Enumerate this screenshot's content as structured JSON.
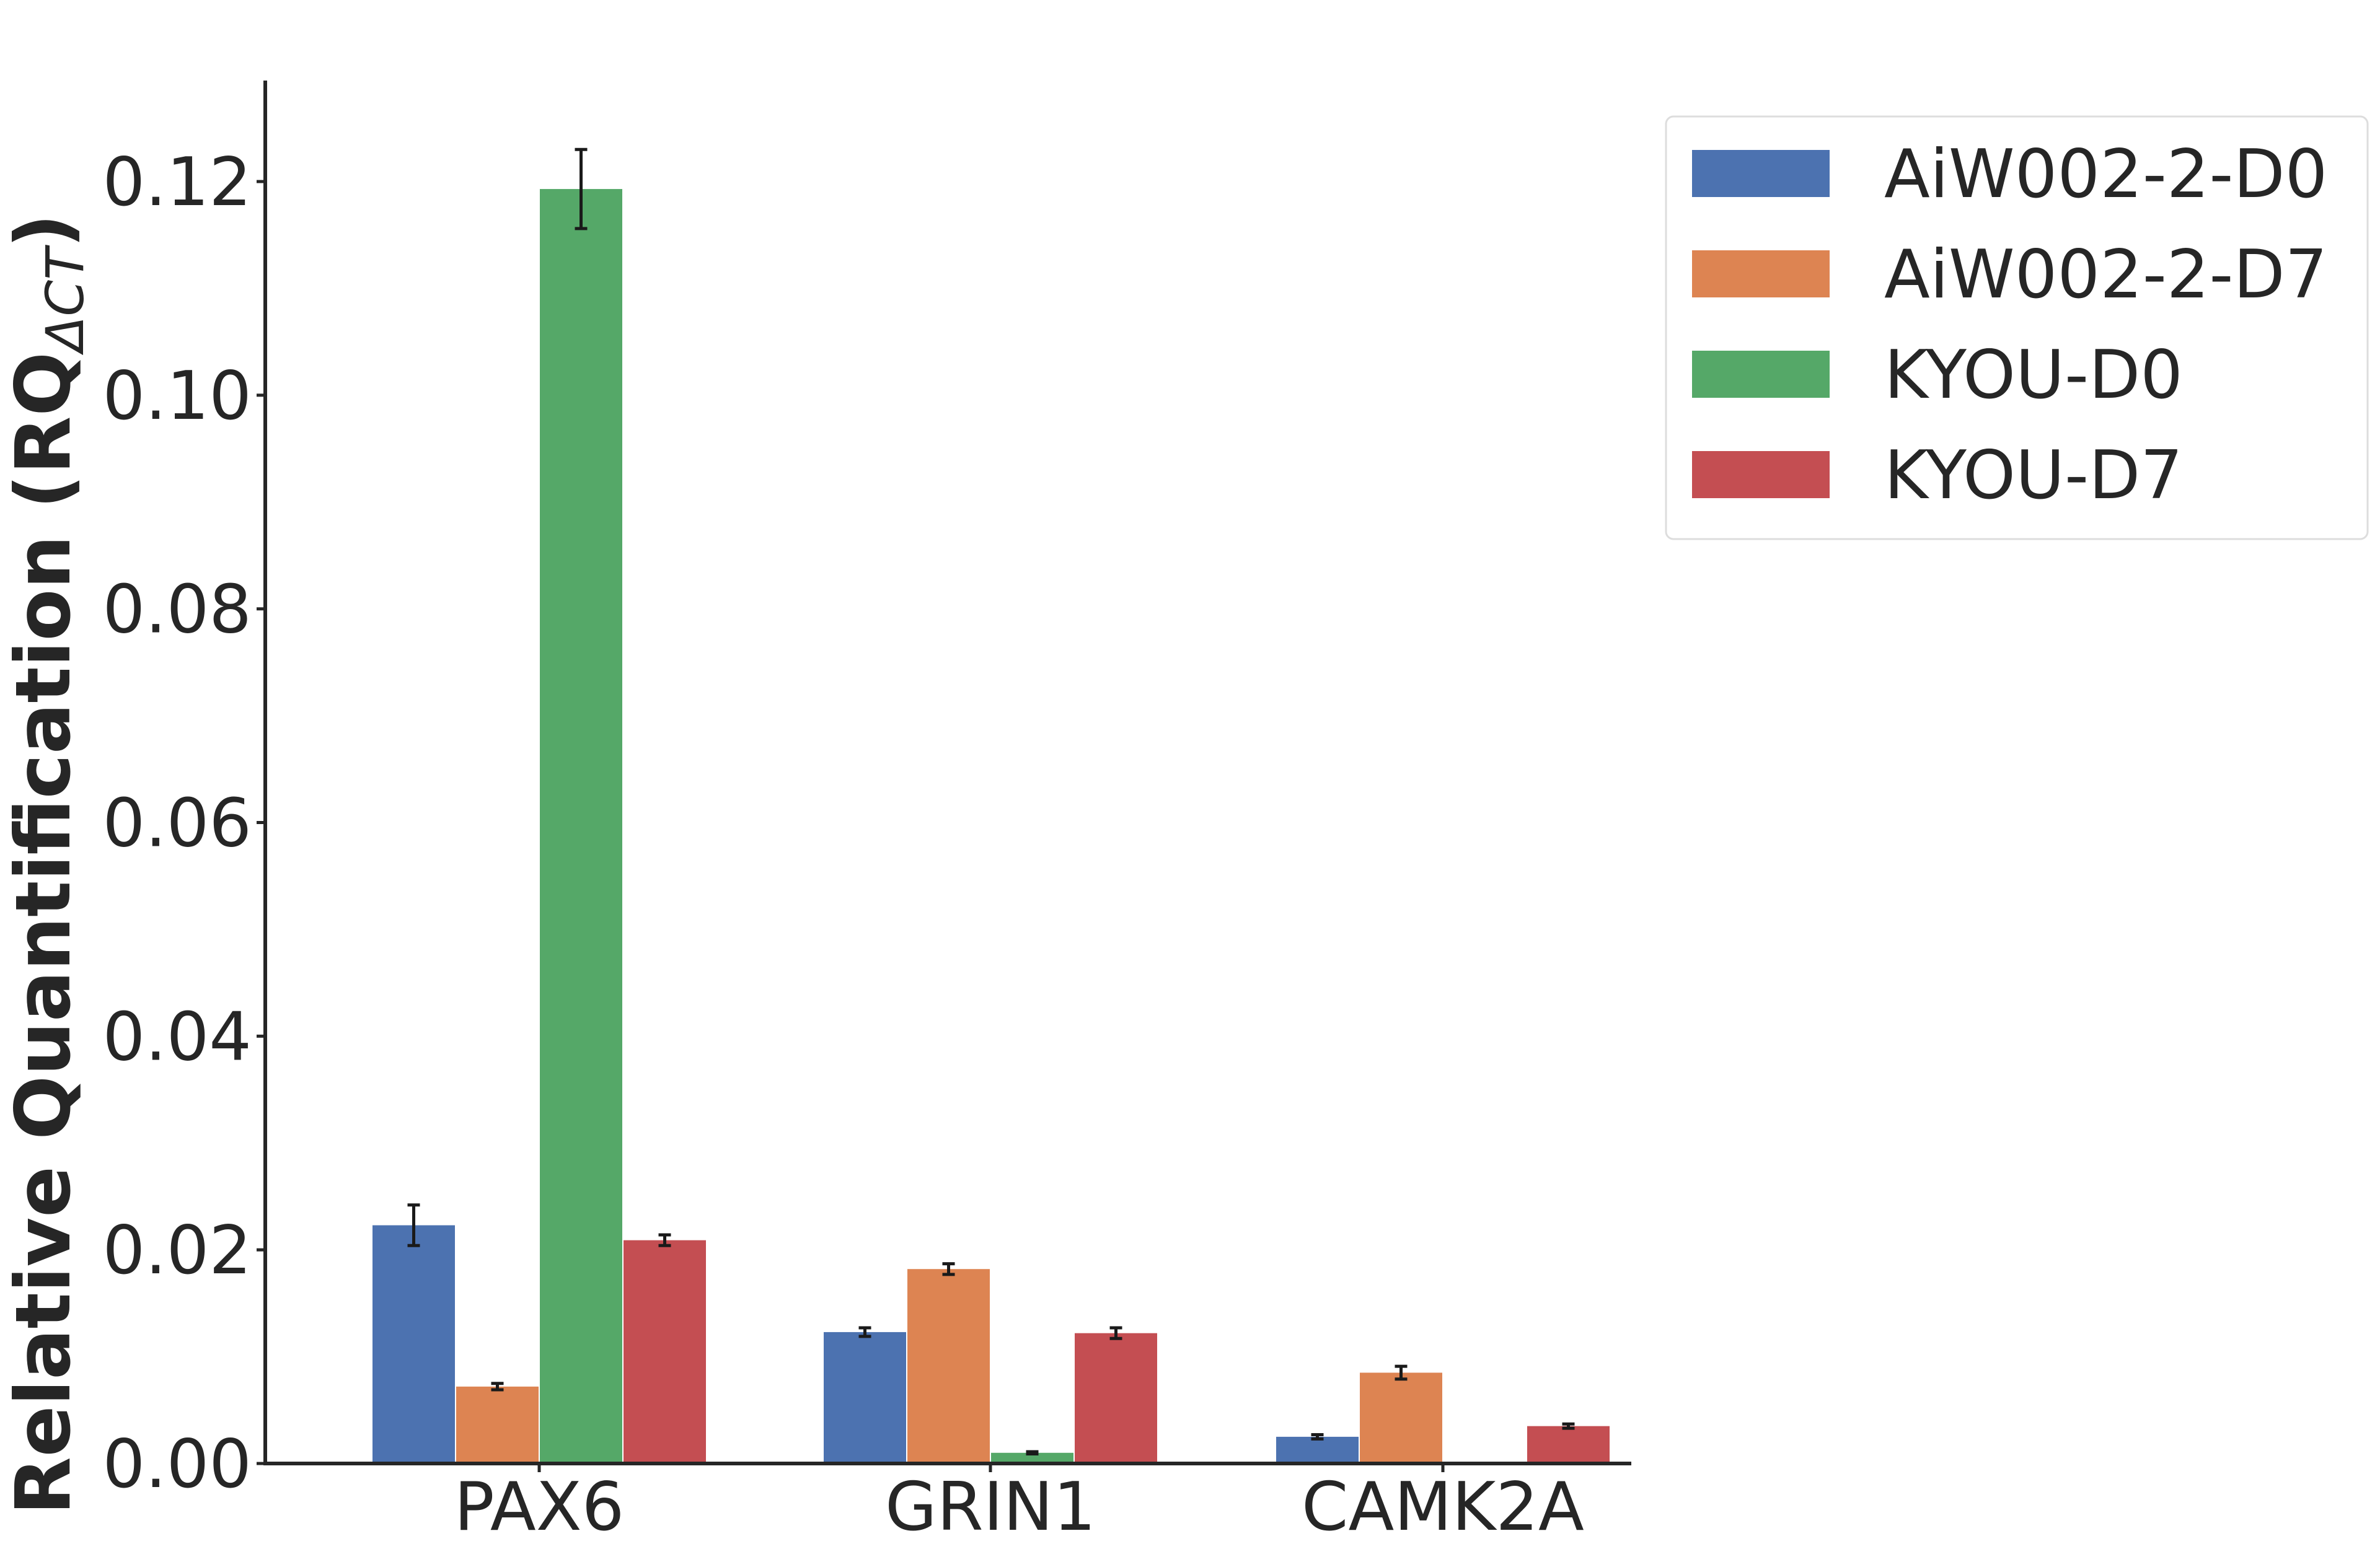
{
  "chart_data": {
    "type": "bar",
    "title": "",
    "xlabel": "",
    "ylabel_main": "Relative Quantification (RQ",
    "ylabel_sub": "ΔCT",
    "ylabel_close": ")",
    "categories": [
      "PAX6",
      "GRIN1",
      "CAMK2A"
    ],
    "series": [
      {
        "name": "AiW002-2-D0",
        "color": "#4c72b0",
        "values": [
          0.0223,
          0.0123,
          0.0025
        ],
        "errors": [
          0.0019,
          0.0004,
          0.0002
        ]
      },
      {
        "name": "AiW002-2-D7",
        "color": "#dd8452",
        "values": [
          0.0072,
          0.0182,
          0.0085
        ],
        "errors": [
          0.0003,
          0.0005,
          0.0006
        ]
      },
      {
        "name": "KYOU-D0",
        "color": "#55a868",
        "values": [
          0.1193,
          0.001,
          0.0
        ],
        "errors": [
          0.0037,
          0.0001,
          0.0
        ]
      },
      {
        "name": "KYOU-D7",
        "color": "#c44e52",
        "values": [
          0.0209,
          0.0122,
          0.0035
        ],
        "errors": [
          0.0005,
          0.0005,
          0.0002
        ]
      }
    ],
    "yticks": [
      "0.00",
      "0.02",
      "0.04",
      "0.06",
      "0.08",
      "0.10",
      "0.12"
    ],
    "ylim": [
      0,
      0.129
    ],
    "grid": false,
    "legend_position": "top-right outside plot"
  }
}
